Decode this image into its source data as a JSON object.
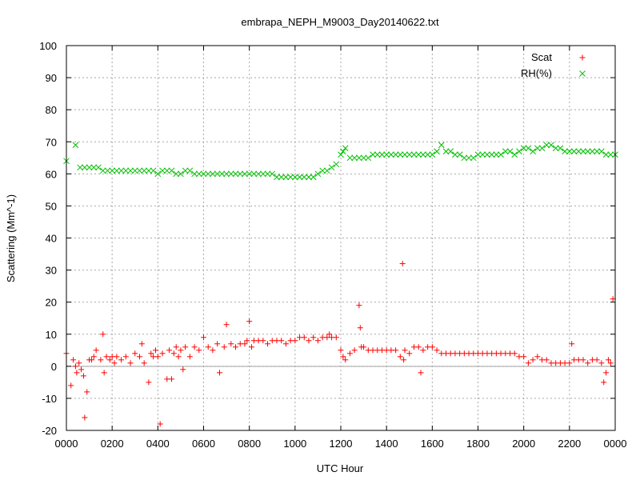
{
  "chart_data": {
    "type": "scatter",
    "title": "embrapa_NEPH_M9003_Day20140622.txt",
    "xlabel": "UTC Hour",
    "ylabel": "Scattering (Mm^-1)",
    "xlim": [
      0,
      2400
    ],
    "ylim": [
      -20,
      100
    ],
    "xticks": [
      "0000",
      "0200",
      "0400",
      "0600",
      "0800",
      "1000",
      "1200",
      "1400",
      "1600",
      "1800",
      "2000",
      "2200",
      "0000"
    ],
    "yticks": [
      "-20",
      "-10",
      "0",
      "10",
      "20",
      "30",
      "40",
      "50",
      "60",
      "70",
      "80",
      "90",
      "100"
    ],
    "grid": true,
    "legend_position": "top-right",
    "series": [
      {
        "name": "Scat",
        "marker": "plus",
        "color": "#ff0000",
        "points": [
          [
            0,
            4
          ],
          [
            20,
            -6
          ],
          [
            30,
            2
          ],
          [
            40,
            0
          ],
          [
            45,
            -2
          ],
          [
            55,
            1
          ],
          [
            65,
            -1
          ],
          [
            75,
            -3
          ],
          [
            80,
            -16
          ],
          [
            90,
            -8
          ],
          [
            100,
            2
          ],
          [
            110,
            2
          ],
          [
            120,
            3
          ],
          [
            130,
            5
          ],
          [
            150,
            2
          ],
          [
            160,
            10
          ],
          [
            165,
            -2
          ],
          [
            175,
            3
          ],
          [
            190,
            2
          ],
          [
            200,
            3
          ],
          [
            210,
            1
          ],
          [
            220,
            3
          ],
          [
            240,
            2
          ],
          [
            260,
            3
          ],
          [
            280,
            1
          ],
          [
            300,
            4
          ],
          [
            320,
            3
          ],
          [
            330,
            7
          ],
          [
            340,
            1
          ],
          [
            360,
            -5
          ],
          [
            370,
            4
          ],
          [
            380,
            3
          ],
          [
            390,
            5
          ],
          [
            400,
            3
          ],
          [
            410,
            -18
          ],
          [
            420,
            4
          ],
          [
            440,
            -4
          ],
          [
            450,
            5
          ],
          [
            460,
            -4
          ],
          [
            470,
            4
          ],
          [
            480,
            6
          ],
          [
            490,
            3
          ],
          [
            500,
            5
          ],
          [
            510,
            -1
          ],
          [
            520,
            6
          ],
          [
            540,
            3
          ],
          [
            560,
            6
          ],
          [
            580,
            5
          ],
          [
            600,
            9
          ],
          [
            620,
            6
          ],
          [
            640,
            5
          ],
          [
            660,
            7
          ],
          [
            670,
            -2
          ],
          [
            690,
            6
          ],
          [
            700,
            13
          ],
          [
            720,
            7
          ],
          [
            740,
            6
          ],
          [
            760,
            7
          ],
          [
            780,
            7
          ],
          [
            790,
            8
          ],
          [
            800,
            14
          ],
          [
            810,
            6
          ],
          [
            820,
            8
          ],
          [
            840,
            8
          ],
          [
            860,
            8
          ],
          [
            880,
            7
          ],
          [
            900,
            8
          ],
          [
            920,
            8
          ],
          [
            940,
            8
          ],
          [
            960,
            7
          ],
          [
            980,
            8
          ],
          [
            1000,
            8
          ],
          [
            1020,
            9
          ],
          [
            1040,
            9
          ],
          [
            1060,
            8
          ],
          [
            1080,
            9
          ],
          [
            1100,
            8
          ],
          [
            1120,
            9
          ],
          [
            1140,
            9
          ],
          [
            1150,
            10
          ],
          [
            1160,
            9
          ],
          [
            1180,
            9
          ],
          [
            1200,
            5
          ],
          [
            1210,
            3
          ],
          [
            1220,
            2
          ],
          [
            1240,
            4
          ],
          [
            1260,
            5
          ],
          [
            1280,
            19
          ],
          [
            1285,
            12
          ],
          [
            1290,
            6
          ],
          [
            1300,
            6
          ],
          [
            1320,
            5
          ],
          [
            1340,
            5
          ],
          [
            1360,
            5
          ],
          [
            1380,
            5
          ],
          [
            1400,
            5
          ],
          [
            1420,
            5
          ],
          [
            1440,
            5
          ],
          [
            1460,
            3
          ],
          [
            1470,
            32
          ],
          [
            1475,
            2
          ],
          [
            1480,
            5
          ],
          [
            1500,
            4
          ],
          [
            1520,
            6
          ],
          [
            1540,
            6
          ],
          [
            1550,
            -2
          ],
          [
            1560,
            5
          ],
          [
            1580,
            6
          ],
          [
            1600,
            6
          ],
          [
            1620,
            5
          ],
          [
            1640,
            4
          ],
          [
            1660,
            4
          ],
          [
            1680,
            4
          ],
          [
            1700,
            4
          ],
          [
            1720,
            4
          ],
          [
            1740,
            4
          ],
          [
            1760,
            4
          ],
          [
            1780,
            4
          ],
          [
            1800,
            4
          ],
          [
            1820,
            4
          ],
          [
            1840,
            4
          ],
          [
            1860,
            4
          ],
          [
            1880,
            4
          ],
          [
            1900,
            4
          ],
          [
            1920,
            4
          ],
          [
            1940,
            4
          ],
          [
            1960,
            4
          ],
          [
            1980,
            3
          ],
          [
            2000,
            3
          ],
          [
            2020,
            1
          ],
          [
            2040,
            2
          ],
          [
            2060,
            3
          ],
          [
            2080,
            2
          ],
          [
            2100,
            2
          ],
          [
            2120,
            1
          ],
          [
            2140,
            1
          ],
          [
            2160,
            1
          ],
          [
            2180,
            1
          ],
          [
            2200,
            1
          ],
          [
            2210,
            7
          ],
          [
            2220,
            2
          ],
          [
            2240,
            2
          ],
          [
            2260,
            2
          ],
          [
            2280,
            1
          ],
          [
            2300,
            2
          ],
          [
            2320,
            2
          ],
          [
            2340,
            1
          ],
          [
            2350,
            -5
          ],
          [
            2360,
            -2
          ],
          [
            2370,
            2
          ],
          [
            2380,
            1
          ],
          [
            2390,
            21
          ]
        ]
      },
      {
        "name": "RH(%)",
        "marker": "cross",
        "color": "#00c000",
        "points": [
          [
            0,
            64
          ],
          [
            40,
            69
          ],
          [
            60,
            62
          ],
          [
            80,
            62
          ],
          [
            100,
            62
          ],
          [
            120,
            62
          ],
          [
            140,
            62
          ],
          [
            160,
            61
          ],
          [
            180,
            61
          ],
          [
            200,
            61
          ],
          [
            220,
            61
          ],
          [
            240,
            61
          ],
          [
            260,
            61
          ],
          [
            280,
            61
          ],
          [
            300,
            61
          ],
          [
            320,
            61
          ],
          [
            340,
            61
          ],
          [
            360,
            61
          ],
          [
            380,
            61
          ],
          [
            400,
            60
          ],
          [
            420,
            61
          ],
          [
            440,
            61
          ],
          [
            460,
            61
          ],
          [
            480,
            60
          ],
          [
            500,
            60
          ],
          [
            520,
            61
          ],
          [
            540,
            61
          ],
          [
            560,
            60
          ],
          [
            580,
            60
          ],
          [
            600,
            60
          ],
          [
            620,
            60
          ],
          [
            640,
            60
          ],
          [
            660,
            60
          ],
          [
            680,
            60
          ],
          [
            700,
            60
          ],
          [
            720,
            60
          ],
          [
            740,
            60
          ],
          [
            760,
            60
          ],
          [
            780,
            60
          ],
          [
            800,
            60
          ],
          [
            820,
            60
          ],
          [
            840,
            60
          ],
          [
            860,
            60
          ],
          [
            880,
            60
          ],
          [
            900,
            60
          ],
          [
            920,
            59
          ],
          [
            940,
            59
          ],
          [
            960,
            59
          ],
          [
            980,
            59
          ],
          [
            1000,
            59
          ],
          [
            1020,
            59
          ],
          [
            1040,
            59
          ],
          [
            1060,
            59
          ],
          [
            1080,
            59
          ],
          [
            1100,
            60
          ],
          [
            1120,
            61
          ],
          [
            1140,
            61
          ],
          [
            1160,
            62
          ],
          [
            1180,
            63
          ],
          [
            1200,
            66
          ],
          [
            1210,
            67
          ],
          [
            1220,
            68
          ],
          [
            1240,
            65
          ],
          [
            1260,
            65
          ],
          [
            1280,
            65
          ],
          [
            1300,
            65
          ],
          [
            1320,
            65
          ],
          [
            1340,
            66
          ],
          [
            1360,
            66
          ],
          [
            1380,
            66
          ],
          [
            1400,
            66
          ],
          [
            1420,
            66
          ],
          [
            1440,
            66
          ],
          [
            1460,
            66
          ],
          [
            1480,
            66
          ],
          [
            1500,
            66
          ],
          [
            1520,
            66
          ],
          [
            1540,
            66
          ],
          [
            1560,
            66
          ],
          [
            1580,
            66
          ],
          [
            1600,
            66
          ],
          [
            1620,
            67
          ],
          [
            1640,
            69
          ],
          [
            1660,
            67
          ],
          [
            1680,
            67
          ],
          [
            1700,
            66
          ],
          [
            1720,
            66
          ],
          [
            1740,
            65
          ],
          [
            1760,
            65
          ],
          [
            1780,
            65
          ],
          [
            1800,
            66
          ],
          [
            1820,
            66
          ],
          [
            1840,
            66
          ],
          [
            1860,
            66
          ],
          [
            1880,
            66
          ],
          [
            1900,
            66
          ],
          [
            1920,
            67
          ],
          [
            1940,
            67
          ],
          [
            1960,
            66
          ],
          [
            1980,
            67
          ],
          [
            2000,
            68
          ],
          [
            2020,
            68
          ],
          [
            2040,
            67
          ],
          [
            2060,
            68
          ],
          [
            2080,
            68
          ],
          [
            2100,
            69
          ],
          [
            2120,
            69
          ],
          [
            2140,
            68
          ],
          [
            2160,
            68
          ],
          [
            2180,
            67
          ],
          [
            2200,
            67
          ],
          [
            2220,
            67
          ],
          [
            2240,
            67
          ],
          [
            2260,
            67
          ],
          [
            2280,
            67
          ],
          [
            2300,
            67
          ],
          [
            2320,
            67
          ],
          [
            2340,
            67
          ],
          [
            2360,
            66
          ],
          [
            2380,
            66
          ],
          [
            2400,
            66
          ]
        ]
      }
    ]
  }
}
